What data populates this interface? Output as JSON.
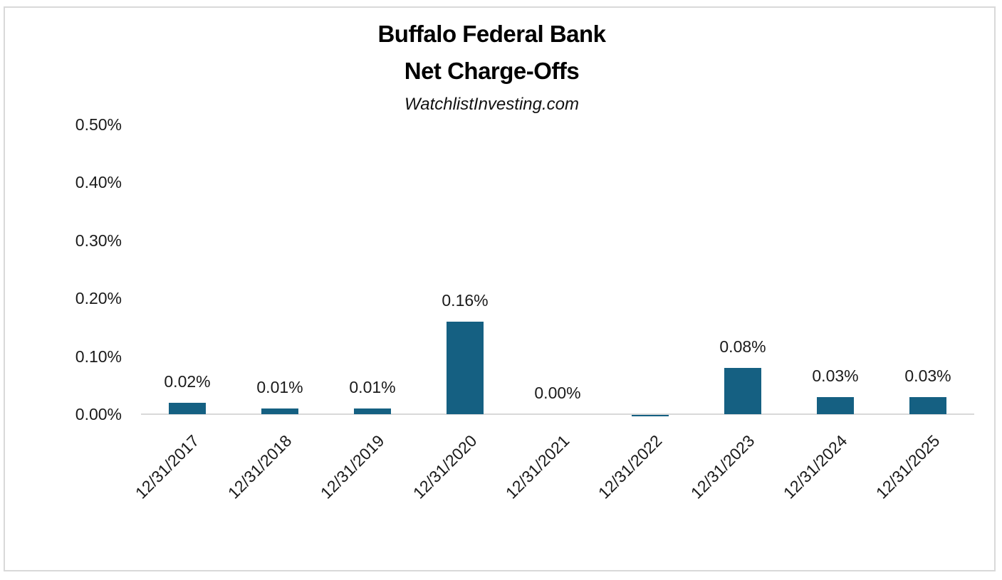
{
  "title": {
    "line1": "Buffalo Federal Bank",
    "line2": "Net Charge-Offs",
    "subtitle": "WatchlistInvesting.com"
  },
  "chart_data": {
    "type": "bar",
    "title": "Buffalo Federal Bank Net Charge-Offs",
    "subtitle": "WatchlistInvesting.com",
    "categories": [
      "12/31/2017",
      "12/31/2018",
      "12/31/2019",
      "12/31/2020",
      "12/31/2021",
      "12/31/2022",
      "12/31/2023",
      "12/31/2024",
      "12/31/2025"
    ],
    "values": [
      0.02,
      0.01,
      0.01,
      0.16,
      0.0,
      -0.003,
      0.08,
      0.03,
      0.03
    ],
    "data_labels": [
      "0.02%",
      "0.01%",
      "0.01%",
      "0.16%",
      "0.00%",
      "",
      "0.08%",
      "0.03%",
      "0.03%"
    ],
    "y_ticks": [
      "0.50%",
      "0.40%",
      "0.30%",
      "0.20%",
      "0.10%",
      "0.00%"
    ],
    "ylim": [
      0,
      0.5
    ],
    "unit": "percent",
    "grid": false,
    "legend": false,
    "colors": {
      "bar": "#156082",
      "axis_line": "#D9D9D9",
      "frame_border": "#D9D9D9",
      "text": "#1A1A1A"
    },
    "note": "2022 bar renders as a tiny negative sliver below the axis with no visible data label"
  }
}
